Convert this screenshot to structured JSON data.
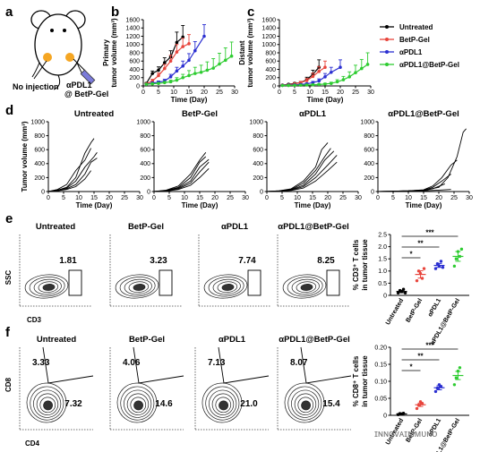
{
  "panel_labels": [
    "a",
    "b",
    "c",
    "d",
    "e",
    "f"
  ],
  "panel_a": {
    "no_injection_label": "No injection",
    "injection_label_line1": "αPDL1",
    "injection_label_line2": "@ BetP-Gel"
  },
  "colors": {
    "Untreated": "#000000",
    "BetP-Gel": "#e8453c",
    "αPDL1": "#2b2fd1",
    "αPDL1@BetP-Gel": "#2ecc31"
  },
  "legend": [
    "Untreated",
    "BetP-Gel",
    "αPDL1",
    "αPDL1@BetP-Gel"
  ],
  "chart_data": [
    {
      "id": "b",
      "type": "line",
      "ylabel_line1": "Primary",
      "ylabel_line2": "tumor volume (mm³)",
      "xlabel": "Time (Day)",
      "xlim": [
        0,
        30
      ],
      "ylim": [
        0,
        1600
      ],
      "xticks": [
        0,
        5,
        10,
        15,
        20,
        25,
        30
      ],
      "yticks": [
        0,
        200,
        400,
        600,
        800,
        1000,
        1200,
        1400,
        1600
      ],
      "series": [
        {
          "name": "Untreated",
          "x": [
            1,
            3,
            5,
            7,
            9,
            11,
            13
          ],
          "y": [
            60,
            300,
            380,
            560,
            700,
            1050,
            1180
          ],
          "err": [
            20,
            60,
            80,
            120,
            150,
            250,
            280
          ]
        },
        {
          "name": "BetP-Gel",
          "x": [
            1,
            3,
            5,
            7,
            9,
            11,
            13,
            15
          ],
          "y": [
            50,
            120,
            250,
            420,
            600,
            820,
            950,
            1020
          ],
          "err": [
            15,
            40,
            60,
            100,
            140,
            180,
            200,
            220
          ]
        },
        {
          "name": "αPDL1",
          "x": [
            1,
            3,
            5,
            7,
            9,
            11,
            13,
            15,
            17,
            20
          ],
          "y": [
            40,
            70,
            90,
            120,
            220,
            360,
            480,
            620,
            850,
            1200
          ],
          "err": [
            10,
            20,
            30,
            40,
            60,
            90,
            120,
            160,
            220,
            280
          ]
        },
        {
          "name": "αPDL1@BetP-Gel",
          "x": [
            1,
            3,
            5,
            7,
            9,
            11,
            13,
            15,
            17,
            19,
            21,
            23,
            25,
            27,
            29
          ],
          "y": [
            40,
            50,
            60,
            80,
            100,
            140,
            200,
            250,
            300,
            330,
            380,
            430,
            530,
            620,
            720
          ],
          "err": [
            10,
            15,
            20,
            30,
            40,
            60,
            80,
            120,
            150,
            170,
            200,
            230,
            260,
            300,
            340
          ]
        }
      ]
    },
    {
      "id": "c",
      "type": "line",
      "ylabel_line1": "Distant",
      "ylabel_line2": "tumor volume (mm³)",
      "xlabel": "Time (Day)",
      "xlim": [
        0,
        30
      ],
      "ylim": [
        0,
        1600
      ],
      "xticks": [
        0,
        5,
        10,
        15,
        20,
        25,
        30
      ],
      "yticks": [
        0,
        200,
        400,
        600,
        800,
        1000,
        1200,
        1400,
        1600
      ],
      "series": [
        {
          "name": "Untreated",
          "x": [
            1,
            3,
            5,
            7,
            9,
            11,
            13
          ],
          "y": [
            20,
            40,
            60,
            80,
            150,
            280,
            450
          ],
          "err": [
            10,
            15,
            20,
            30,
            60,
            100,
            180
          ]
        },
        {
          "name": "BetP-Gel",
          "x": [
            1,
            3,
            5,
            7,
            9,
            11,
            13,
            15
          ],
          "y": [
            20,
            30,
            50,
            80,
            130,
            230,
            350,
            450
          ],
          "err": [
            10,
            10,
            20,
            30,
            50,
            80,
            120,
            150
          ]
        },
        {
          "name": "αPDL1",
          "x": [
            1,
            3,
            5,
            7,
            9,
            11,
            13,
            15,
            17,
            20
          ],
          "y": [
            15,
            20,
            25,
            35,
            50,
            80,
            120,
            220,
            330,
            450
          ],
          "err": [
            5,
            5,
            10,
            15,
            20,
            30,
            50,
            80,
            120,
            180
          ]
        },
        {
          "name": "αPDL1@BetP-Gel",
          "x": [
            1,
            3,
            5,
            7,
            9,
            11,
            13,
            15,
            17,
            19,
            21,
            23,
            25,
            27,
            29
          ],
          "y": [
            10,
            12,
            15,
            18,
            22,
            28,
            35,
            45,
            60,
            100,
            150,
            220,
            320,
            420,
            520
          ],
          "err": [
            5,
            5,
            5,
            8,
            10,
            12,
            15,
            20,
            30,
            50,
            80,
            120,
            180,
            220,
            280
          ]
        }
      ]
    },
    {
      "id": "d1",
      "type": "line",
      "title": "Untreated",
      "ylabel": "Tumor volume (mm³)",
      "xlabel": "Time (Day)",
      "xlim": [
        0,
        30
      ],
      "ylim": [
        0,
        1000
      ],
      "xticks": [
        0,
        5,
        10,
        15,
        20,
        25,
        30
      ],
      "yticks": [
        0,
        200,
        400,
        600,
        800,
        1000
      ],
      "series": [
        {
          "x": [
            0,
            3,
            6,
            9,
            12,
            14,
            15
          ],
          "y": [
            0,
            20,
            60,
            200,
            550,
            700,
            760
          ]
        },
        {
          "x": [
            0,
            3,
            6,
            9,
            12,
            14
          ],
          "y": [
            0,
            30,
            100,
            300,
            450,
            620
          ]
        },
        {
          "x": [
            0,
            3,
            6,
            9,
            12,
            15,
            16
          ],
          "y": [
            0,
            20,
            50,
            150,
            350,
            500,
            560
          ]
        },
        {
          "x": [
            0,
            3,
            6,
            9,
            12,
            14,
            16
          ],
          "y": [
            0,
            10,
            40,
            100,
            250,
            420,
            480
          ]
        },
        {
          "x": [
            0,
            3,
            6,
            9,
            12,
            14
          ],
          "y": [
            0,
            10,
            30,
            70,
            180,
            300
          ]
        }
      ]
    },
    {
      "id": "d2",
      "type": "line",
      "title": "BetP-Gel",
      "xlabel": "Time (Day)",
      "xlim": [
        0,
        30
      ],
      "ylim": [
        0,
        1000
      ],
      "xticks": [
        0,
        5,
        10,
        15,
        20,
        25,
        30
      ],
      "yticks": [
        0,
        200,
        400,
        600,
        800,
        1000
      ],
      "series": [
        {
          "x": [
            0,
            4,
            8,
            12,
            15,
            17
          ],
          "y": [
            0,
            20,
            80,
            250,
            450,
            560
          ]
        },
        {
          "x": [
            0,
            4,
            8,
            12,
            15,
            17
          ],
          "y": [
            0,
            15,
            60,
            200,
            420,
            500
          ]
        },
        {
          "x": [
            0,
            4,
            8,
            12,
            15,
            18
          ],
          "y": [
            0,
            10,
            50,
            150,
            350,
            460
          ]
        },
        {
          "x": [
            0,
            4,
            8,
            12,
            15,
            18
          ],
          "y": [
            0,
            10,
            40,
            120,
            280,
            420
          ]
        },
        {
          "x": [
            0,
            4,
            8,
            12,
            15,
            18
          ],
          "y": [
            0,
            5,
            30,
            90,
            200,
            330
          ]
        }
      ]
    },
    {
      "id": "d3",
      "type": "line",
      "title": "αPDL1",
      "xlabel": "Time (Day)",
      "xlim": [
        0,
        30
      ],
      "ylim": [
        0,
        1000
      ],
      "xticks": [
        0,
        5,
        10,
        15,
        20,
        25,
        30
      ],
      "yticks": [
        0,
        200,
        400,
        600,
        800,
        1000
      ],
      "series": [
        {
          "x": [
            0,
            4,
            8,
            12,
            16,
            18,
            20
          ],
          "y": [
            0,
            10,
            40,
            150,
            350,
            600,
            700
          ]
        },
        {
          "x": [
            0,
            4,
            8,
            12,
            16,
            19,
            21
          ],
          "y": [
            0,
            10,
            30,
            120,
            300,
            500,
            620
          ]
        },
        {
          "x": [
            0,
            4,
            8,
            12,
            16,
            19,
            22
          ],
          "y": [
            0,
            5,
            25,
            90,
            250,
            450,
            580
          ]
        },
        {
          "x": [
            0,
            4,
            8,
            12,
            16,
            20,
            23
          ],
          "y": [
            0,
            5,
            20,
            70,
            200,
            380,
            520
          ]
        },
        {
          "x": [
            0,
            4,
            8,
            12,
            16,
            20,
            23
          ],
          "y": [
            0,
            5,
            15,
            50,
            150,
            300,
            420
          ]
        }
      ]
    },
    {
      "id": "d4",
      "type": "line",
      "title": "αPDL1@BetP-Gel",
      "xlabel": "Time (Day)",
      "xlim": [
        0,
        30
      ],
      "ylim": [
        0,
        1000
      ],
      "xticks": [
        0,
        5,
        10,
        15,
        20,
        25,
        30
      ],
      "yticks": [
        0,
        200,
        400,
        600,
        800,
        1000
      ],
      "series": [
        {
          "x": [
            0,
            5,
            10,
            15,
            20,
            23,
            26,
            28,
            29
          ],
          "y": [
            0,
            5,
            10,
            20,
            60,
            200,
            500,
            850,
            900
          ]
        },
        {
          "x": [
            0,
            5,
            10,
            15,
            18,
            21,
            24,
            26
          ],
          "y": [
            0,
            5,
            10,
            25,
            80,
            200,
            380,
            450
          ]
        },
        {
          "x": [
            0,
            5,
            10,
            15,
            18,
            21,
            24
          ],
          "y": [
            0,
            5,
            10,
            20,
            60,
            150,
            250
          ]
        },
        {
          "x": [
            0,
            5,
            10,
            15,
            18,
            22
          ],
          "y": [
            0,
            3,
            8,
            15,
            40,
            110
          ]
        },
        {
          "x": [
            0,
            5,
            10,
            15,
            20,
            24
          ],
          "y": [
            0,
            3,
            5,
            10,
            20,
            30
          ]
        }
      ]
    },
    {
      "id": "e_dot",
      "type": "scatter",
      "ylabel_line1": "% CD3⁺ T cells",
      "ylabel_line2": "in tumor tissue",
      "categories": [
        "Untreated",
        "BetP-Gel",
        "αPDL1",
        "αPDL1@BetP-Gel"
      ],
      "ylim": [
        0,
        2.5
      ],
      "yticks": [
        0,
        0.5,
        1.0,
        1.5,
        2.0,
        2.5
      ],
      "points": [
        [
          0.1,
          0.2,
          0.15,
          0.25,
          0.1
        ],
        [
          0.6,
          1.0,
          0.9,
          0.7,
          1.1
        ],
        [
          1.1,
          1.3,
          1.2,
          1.4,
          1.15
        ],
        [
          1.2,
          1.5,
          1.8,
          1.6,
          1.9
        ]
      ],
      "means": [
        0.16,
        0.86,
        1.23,
        1.6
      ],
      "sem": [
        0.05,
        0.15,
        0.08,
        0.2
      ],
      "significance": [
        "*",
        "**",
        "***"
      ]
    },
    {
      "id": "f_dot",
      "type": "scatter",
      "ylabel_line1": "% CD8⁺ T cells",
      "ylabel_line2": "in tumor tissue",
      "categories": [
        "Untreated",
        "BetP-Gel",
        "αPDL1",
        "αPDL1@BetP-Gel"
      ],
      "ylim": [
        0,
        0.2
      ],
      "yticks": [
        0,
        0.05,
        0.1,
        0.15,
        0.2
      ],
      "points": [
        [
          0.002,
          0.005,
          0.004,
          0.006
        ],
        [
          0.02,
          0.03,
          0.04,
          0.035
        ],
        [
          0.07,
          0.08,
          0.09,
          0.085
        ],
        [
          0.09,
          0.11,
          0.13,
          0.14
        ]
      ],
      "means": [
        0.004,
        0.031,
        0.081,
        0.117
      ],
      "sem": [
        0.001,
        0.005,
        0.006,
        0.012
      ],
      "significance": [
        "*",
        "**",
        "***"
      ]
    }
  ],
  "flow_e": {
    "titles": [
      "Untreated",
      "BetP-Gel",
      "αPDL1",
      "αPDL1@BetP-Gel"
    ],
    "values": [
      "1.81",
      "3.23",
      "7.74",
      "8.25"
    ],
    "ylabel": "SSC",
    "xlabel": "CD3"
  },
  "flow_f": {
    "titles": [
      "Untreated",
      "BetP-Gel",
      "αPDL1",
      "αPDL1@BetP-Gel"
    ],
    "upper_left": [
      "3.33",
      "4.06",
      "7.13",
      "8.07"
    ],
    "lower_right": [
      "7.32",
      "14.6",
      "21.0",
      "15.4"
    ],
    "ylabel": "CD8",
    "xlabel": "CD4"
  },
  "watermark": "ɪɴɴᴏᴠᴀɪᴍᴍᴜɴᴏ"
}
